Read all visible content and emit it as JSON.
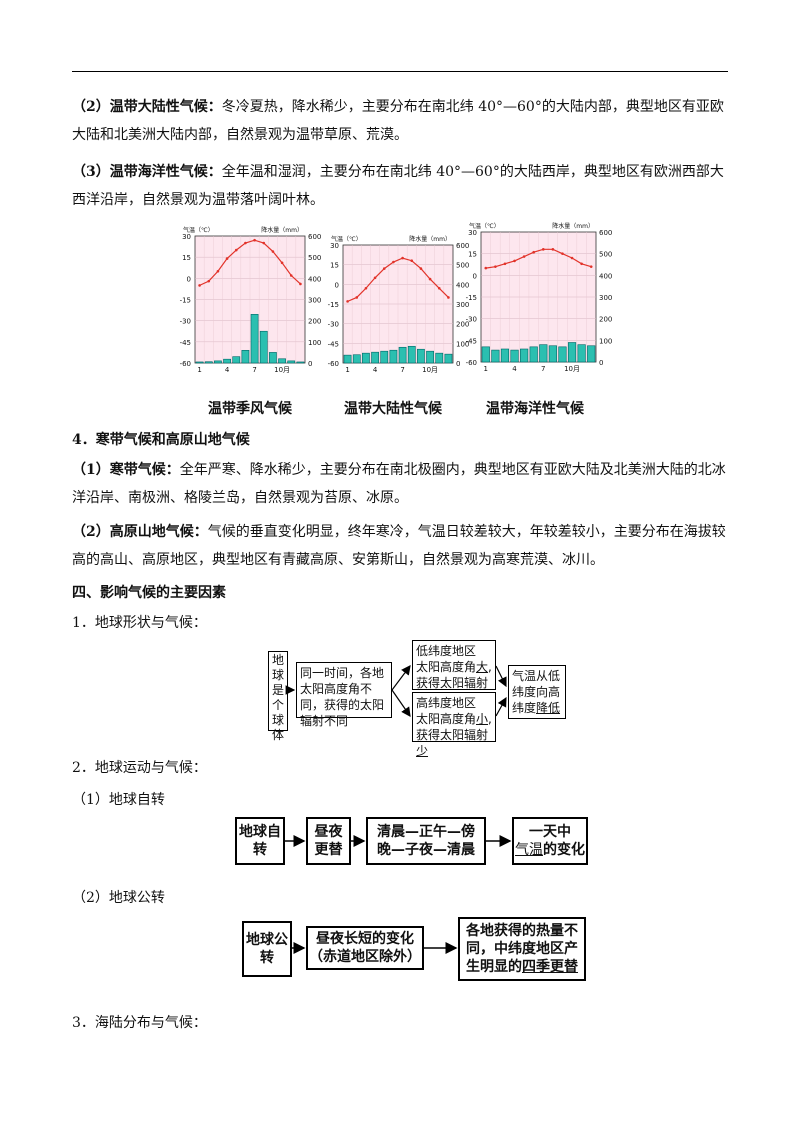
{
  "section3": {
    "p2_label": "（2）温带大陆性气候：",
    "p2_text": "冬冷夏热，降水稀少，主要分布在南北纬 40°—60°的大陆内部，典型地区有亚欧大陆和北美洲大陆内部，自然景观为温带草原、荒漠。",
    "p3_label": "（3）温带海洋性气候：",
    "p3_text": "全年温和湿润，主要分布在南北纬 40°—60°的大陆西岸，典型地区有欧洲西部大西洋沿岸，自然景观为温带落叶阔叶林。"
  },
  "charts_captions": [
    "温带季风气候",
    "温带大陆性气候",
    "温带海洋性气候"
  ],
  "chart_axis_text": {
    "temp_label": "气温（℃）",
    "precip_label": "降水量（mm）",
    "y_left_ticks": [
      "30",
      "15",
      "0",
      "-15",
      "-30",
      "-45",
      "-60"
    ],
    "y_right_ticks": [
      "600",
      "500",
      "400",
      "300",
      "200",
      "100",
      "0"
    ],
    "x_ticks": [
      "1",
      "4",
      "7",
      "10月"
    ]
  },
  "chart_data": [
    {
      "type": "bar",
      "title": "温带季风气候",
      "x": [
        1,
        2,
        3,
        4,
        5,
        6,
        7,
        8,
        9,
        10,
        11,
        12
      ],
      "series": [
        {
          "name": "降水量",
          "values": [
            5,
            6,
            10,
            18,
            30,
            60,
            230,
            150,
            50,
            20,
            10,
            5
          ]
        },
        {
          "name": "气温",
          "type": "line",
          "values": [
            -5,
            -2,
            5,
            14,
            20,
            25,
            27,
            25,
            19,
            11,
            2,
            -4
          ]
        }
      ],
      "xlabel": "",
      "ylabel": "",
      "ylim_left": [
        -60,
        30
      ],
      "ylim_right": [
        0,
        600
      ]
    },
    {
      "type": "bar",
      "title": "温带大陆性气候",
      "x": [
        1,
        2,
        3,
        4,
        5,
        6,
        7,
        8,
        9,
        10,
        11,
        12
      ],
      "series": [
        {
          "name": "降水量",
          "values": [
            40,
            42,
            50,
            55,
            60,
            65,
            80,
            85,
            70,
            60,
            50,
            45
          ]
        },
        {
          "name": "气温",
          "type": "line",
          "values": [
            -13,
            -10,
            -3,
            5,
            12,
            17,
            20,
            18,
            12,
            4,
            -3,
            -10
          ]
        }
      ],
      "xlabel": "",
      "ylabel": "",
      "ylim_left": [
        -60,
        30
      ],
      "ylim_right": [
        0,
        600
      ]
    },
    {
      "type": "bar",
      "title": "温带海洋性气候",
      "x": [
        1,
        2,
        3,
        4,
        5,
        6,
        7,
        8,
        9,
        10,
        11,
        12
      ],
      "series": [
        {
          "name": "降水量",
          "values": [
            70,
            55,
            60,
            55,
            60,
            70,
            80,
            75,
            70,
            90,
            80,
            75
          ]
        },
        {
          "name": "气温",
          "type": "line",
          "values": [
            5,
            6,
            8,
            10,
            13,
            16,
            18,
            18,
            15,
            12,
            8,
            6
          ]
        }
      ],
      "xlabel": "",
      "ylabel": "",
      "ylim_left": [
        -60,
        30
      ],
      "ylim_right": [
        0,
        600
      ]
    }
  ],
  "section4": {
    "title": "4．寒带气候和高原山地气候",
    "p1_label": "（1）寒带气候：",
    "p1_text": "全年严寒、降水稀少，主要分布在南北极圈内，典型地区有亚欧大陆及北美洲大陆的北冰洋沿岸、南极洲、格陵兰岛，自然景观为苔原、冰原。",
    "p2_label": "（2）高原山地气候：",
    "p2_text": "气候的垂直变化明显，终年寒冷，气温日较差较大，年较差较小，主要分布在海拔较高的高山、高原地区，典型地区有青藏高原、安第斯山，自然景观为高寒荒漠、冰川。"
  },
  "section_iv": {
    "title": "四、影响气候的主要因素",
    "item1": "1．地球形状与气候：",
    "d1": {
      "b1": "地球是个球体",
      "b2": "同一时间，各地太阳高度角不同，获得的太阳辐射不同",
      "b3_l1": "低纬度地区",
      "b3_l2a": "太阳高度角",
      "b3_l2b": "大",
      "b3_l3a": "获得太阳辐射",
      "b3_l3b": "多",
      "b4_l1": "高纬度地区",
      "b4_l2a": "太阳高度角",
      "b4_l2b": "小",
      "b4_l3a": "获得太阳辐射",
      "b4_l3b": "少",
      "b5_l1": "气温从低",
      "b5_l2": "纬度向高",
      "b5_l3a": "纬度",
      "b5_l3b": "降低"
    },
    "item2": "2．地球运动与气候：",
    "item2_1": "（1）地球自转",
    "d2": {
      "b1": "地球自转",
      "b2": "昼夜更替",
      "b3_l1": "清晨—正午—傍",
      "b3_l2": "晚—子夜—清晨",
      "b4_l1": "一天中",
      "b4_l2a": "气温",
      "b4_l2b": "的变化"
    },
    "item2_2": "（2）地球公转",
    "d3": {
      "b1": "地球公转",
      "b2_l1": "昼夜长短的变化",
      "b2_l2": "（赤道地区除外）",
      "b3_l1": "各地获得的热量不",
      "b3_l2": "同，中纬度地区产",
      "b3_l3a": "生明显的",
      "b3_l3b": "四季更替"
    },
    "item3": "3．海陆分布与气候："
  }
}
